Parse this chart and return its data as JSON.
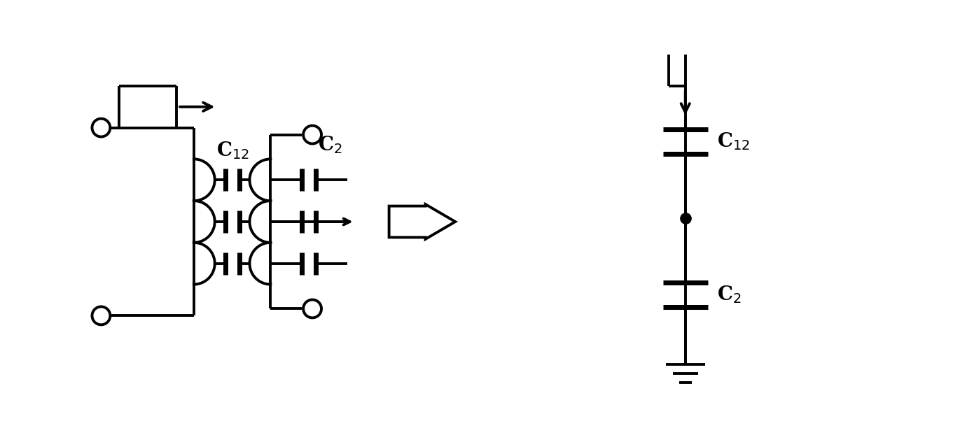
{
  "bg_color": "#ffffff",
  "line_color": "#000000",
  "line_width": 2.8,
  "fig_width": 13.81,
  "fig_height": 6.32,
  "dpi": 100
}
